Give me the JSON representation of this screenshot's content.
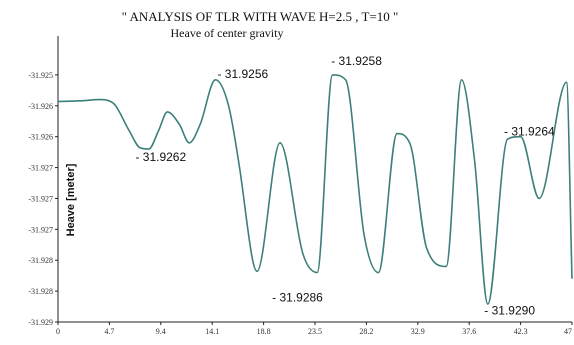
{
  "chart_data": {
    "type": "line",
    "title": "\" ANALYSIS OF   TLR   WITH WAVE  H=2.5 , T=10 \"",
    "subtitle": "Heave of center gravity",
    "ylabel": "Heave [meter]",
    "xlabel": "",
    "xlim": [
      0,
      47
    ],
    "ylim": [
      -31.929,
      -31.9245
    ],
    "x_ticks": [
      "0",
      "4.7",
      "9.4",
      "14.1",
      "18.8",
      "23.5",
      "28.2",
      "32.9",
      "37.6",
      "42.3",
      "47"
    ],
    "x_tick_values": [
      0,
      4.7,
      9.4,
      14.1,
      18.8,
      23.5,
      28.2,
      32.9,
      37.6,
      42.3,
      47
    ],
    "y_ticks": [
      "-31.925",
      "-31.926",
      "-31.926",
      "-31.927",
      "-31.927",
      "-31.927",
      "-31.928",
      "-31.928",
      "-31.929"
    ],
    "y_tick_values": [
      -31.925,
      -31.9255,
      -31.926,
      -31.9265,
      -31.927,
      -31.9275,
      -31.928,
      -31.9285,
      -31.929
    ],
    "line_color": "#3d7f7a",
    "grid": false,
    "series": [
      {
        "name": "",
        "x": [
          0,
          2.0,
          3.8,
          5.0,
          6.5,
          7.5,
          8.3,
          9.2,
          10.0,
          11.1,
          12.0,
          13.0,
          14.4,
          15.6,
          16.6,
          17.8,
          18.2,
          20.3,
          22.4,
          23.7,
          25.1,
          26.3,
          28.0,
          29.3,
          31.0,
          32.2,
          33.7,
          35.5,
          36.9,
          38.1,
          39.3,
          41.1,
          42.3,
          44.0,
          46.5,
          47.0
        ],
        "y": [
          -31.92543,
          -31.92542,
          -31.9254,
          -31.92545,
          -31.9259,
          -31.92618,
          -31.9262,
          -31.9259,
          -31.9256,
          -31.9258,
          -31.9261,
          -31.9258,
          -31.92508,
          -31.9255,
          -31.9265,
          -31.928,
          -31.92818,
          -31.9261,
          -31.9279,
          -31.9282,
          -31.925,
          -31.92508,
          -31.9276,
          -31.9282,
          -31.92595,
          -31.92612,
          -31.9278,
          -31.9281,
          -31.92508,
          -31.9264,
          -31.92871,
          -31.92604,
          -31.926,
          -31.927,
          -31.92512,
          -31.9283
        ]
      }
    ],
    "annotations": [
      {
        "text": "- 31.9262",
        "x": 9.4,
        "y": -31.92639
      },
      {
        "text": "- 31.9256",
        "x": 16.9,
        "y": -31.92505
      },
      {
        "text": "- 31.9258",
        "x": 27.3,
        "y": -31.92484
      },
      {
        "text": "- 31.9286",
        "x": 21.9,
        "y": -31.92867
      },
      {
        "text": "- 31.9264",
        "x": 43.1,
        "y": -31.92598
      },
      {
        "text": "- 31.9290",
        "x": 41.3,
        "y": -31.92888
      }
    ]
  }
}
